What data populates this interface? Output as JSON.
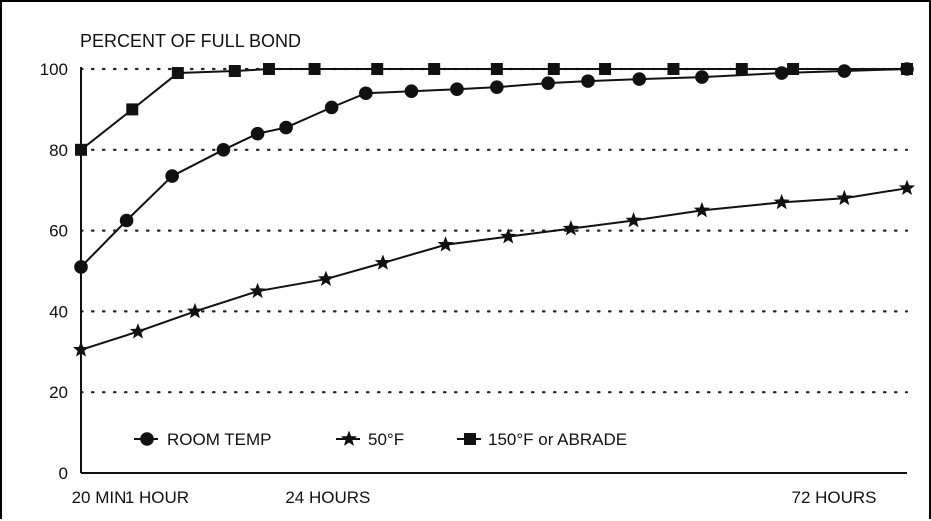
{
  "chart_data": {
    "type": "line",
    "title": "PERCENT OF FULL BOND",
    "ylim": [
      0,
      100
    ],
    "y_ticks": [
      "0",
      "20",
      "40",
      "60",
      "80",
      "100"
    ],
    "y_tick_values": [
      0,
      20,
      40,
      60,
      80,
      100
    ],
    "x_tick_labels": [
      "20 MIN",
      "1 HOUR",
      "24 HOURS",
      "72 HOURS"
    ],
    "x_tick_positions": [
      0,
      1,
      4,
      14
    ],
    "grid": "dotted horizontal lines",
    "legend_position": "bottom-left",
    "series": [
      {
        "name": "ROOM TEMP",
        "marker": "circle",
        "x": [
          0,
          0.8,
          1.6,
          2.5,
          3.1,
          3.6,
          4.4,
          5.0,
          5.8,
          6.6,
          7.3,
          8.2,
          8.9,
          9.8,
          10.9,
          12.3,
          13.4,
          14.5
        ],
        "values": [
          51,
          62.5,
          73.5,
          80,
          84,
          85.5,
          90.5,
          94,
          94.5,
          95,
          95.5,
          96.5,
          97,
          97.5,
          98,
          99,
          99.5,
          100
        ]
      },
      {
        "name": "50°F",
        "marker": "star",
        "x": [
          0,
          1,
          2,
          3.1,
          4.3,
          5.3,
          6.4,
          7.5,
          8.6,
          9.7,
          10.9,
          12.3,
          13.4,
          14.5
        ],
        "values": [
          30.5,
          35,
          40,
          45,
          48,
          52,
          56.5,
          58.5,
          60.5,
          62.5,
          65,
          67,
          68,
          70.5
        ]
      },
      {
        "name": "150°F or ABRADE",
        "marker": "square",
        "x": [
          0,
          0.9,
          1.7,
          2.7,
          3.3,
          4.1,
          5.2,
          6.2,
          7.3,
          8.3,
          9.2,
          10.4,
          11.6,
          12.5,
          14.5
        ],
        "values": [
          80,
          90,
          99,
          99.5,
          100,
          100,
          100,
          100,
          100,
          100,
          100,
          100,
          100,
          100,
          100
        ]
      }
    ]
  }
}
